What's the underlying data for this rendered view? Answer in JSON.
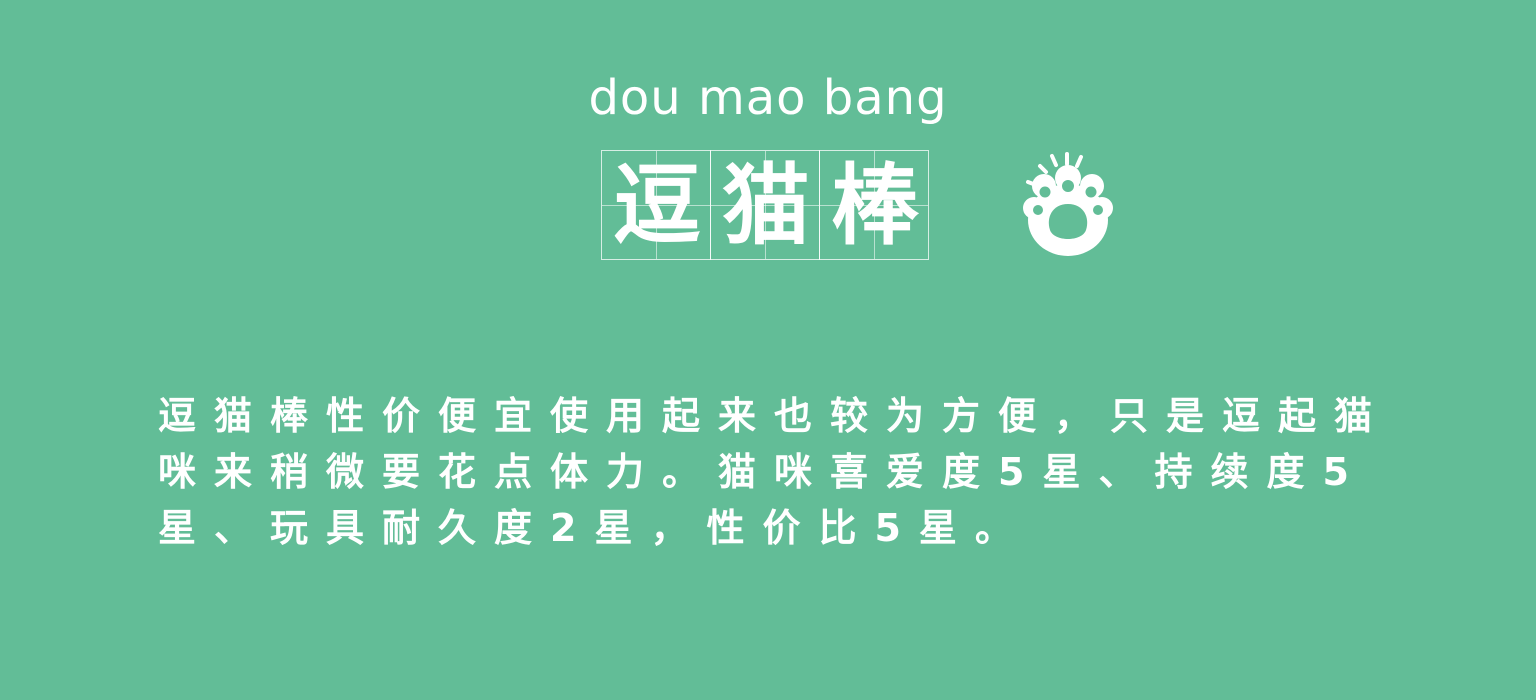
{
  "header": {
    "pinyin": "dou mao bang",
    "title_chars": [
      "逗",
      "猫",
      "棒"
    ]
  },
  "icon": {
    "name": "paw-icon",
    "color": "#ffffff"
  },
  "description": "逗猫棒性价便宜使用起来也较为方便，只是逗起猫咪来稍微要花点体力。猫咪喜爱度5星、持续度5星、玩具耐久度2星，性价比5星。",
  "colors": {
    "background": "#62bd97",
    "text": "#ffffff"
  }
}
